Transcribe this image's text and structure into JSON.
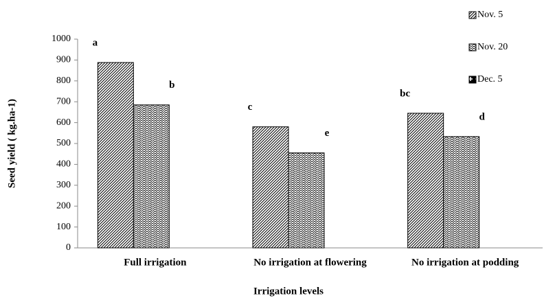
{
  "chart_data": {
    "type": "bar",
    "x_label": "Irrigation levels",
    "y_label": "Seed yield ( kg.ha-1)",
    "categories": [
      "Full irrigation",
      "No irrigation  at flowering",
      "No irrigation  at podding"
    ],
    "series": [
      {
        "name": "Nov. 5",
        "pattern": "diagonal",
        "values": [
          888,
          580,
          645
        ],
        "letters": [
          "a",
          "c",
          "bc"
        ]
      },
      {
        "name": "Nov. 20",
        "pattern": "scallop",
        "values": [
          685,
          455,
          533
        ],
        "letters": [
          "b",
          "e",
          "d"
        ]
      },
      {
        "name": "Dec. 5",
        "pattern": "plus",
        "values": [
          null,
          null,
          null
        ]
      }
    ],
    "ylim": [
      0,
      1000
    ],
    "yticks": [
      0,
      100,
      200,
      300,
      400,
      500,
      600,
      700,
      800,
      900,
      1000
    ],
    "legend": "top-right"
  }
}
